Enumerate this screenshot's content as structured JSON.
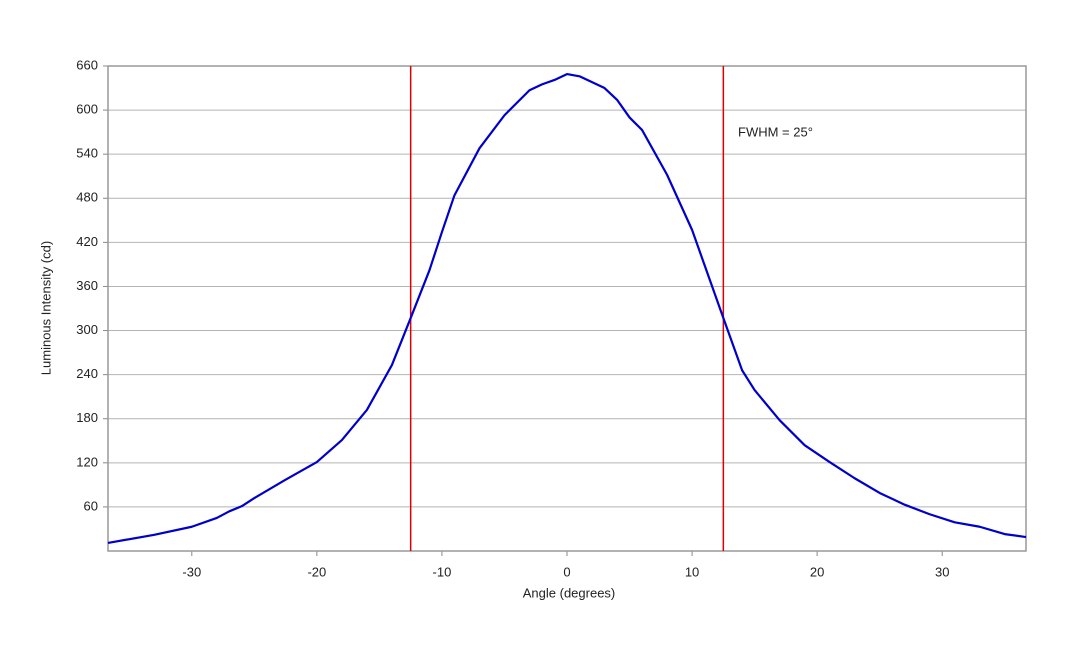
{
  "chart_data": {
    "type": "line",
    "x_label": "Angle (degrees)",
    "y_label": "Luminous Intensity (cd)",
    "annotation": "FWHM = 25°",
    "x": [
      -36.7,
      -33,
      -30,
      -28,
      -27,
      -26,
      -25,
      -22.5,
      -20,
      -18,
      -16,
      -14,
      -12.5,
      -11,
      -10,
      -9,
      -7,
      -5,
      -3,
      -2,
      -1,
      0,
      1,
      2,
      3,
      4,
      5,
      6,
      8,
      10,
      11,
      12.5,
      14,
      15,
      17,
      19,
      21,
      23,
      25,
      27,
      29,
      31,
      33,
      35,
      36.7
    ],
    "series": [
      {
        "name": "Luminous Intensity",
        "color": "#0000cc",
        "values": [
          11,
          22,
          33,
          45,
          54,
          61,
          72,
          97,
          121,
          151,
          192,
          253,
          317,
          382,
          434,
          484,
          548,
          593,
          627,
          635,
          641,
          649,
          646,
          638,
          630,
          614,
          590,
          573,
          512,
          437,
          389,
          317,
          246,
          219,
          178,
          144,
          121,
          99,
          79,
          63,
          50,
          39,
          33,
          23,
          19
        ]
      }
    ],
    "vlines": [
      -12.5,
      12.5
    ],
    "vline_color": "#dd0000",
    "xlim": [
      -36.7,
      36.7
    ],
    "ylim": [
      0,
      660
    ],
    "xticks": [
      -30,
      -20,
      -10,
      0,
      10,
      20,
      30
    ],
    "yticks": [
      60,
      120,
      180,
      240,
      300,
      360,
      420,
      480,
      540,
      600,
      660
    ],
    "grid": true
  }
}
